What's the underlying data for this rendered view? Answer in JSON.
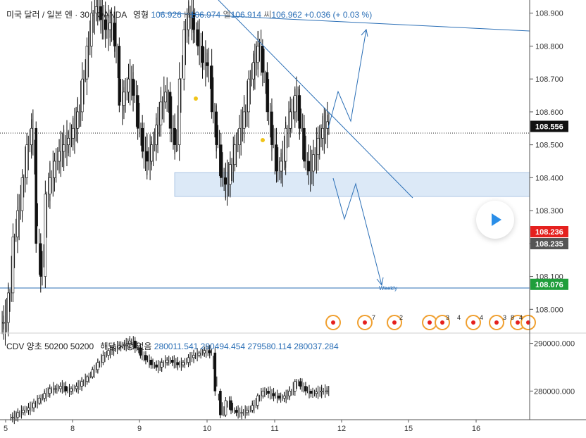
{
  "header": {
    "symbol": "미국 달러 / 일본 엔 · 30 · OANDA",
    "status": "영형",
    "o": "106.926",
    "h_label": "H",
    "h": "106.974",
    "l_label": "엘",
    "l": "106.914",
    "c_label": "씨",
    "c": "106.962",
    "change": "+0.036 (+ 0.03 %)"
  },
  "indicator": {
    "title": "CDV 양초 50200 50200",
    "note": "해당 사항 없음",
    "values": [
      "280011.541",
      "280494.454",
      "279580.114",
      "280037.284"
    ]
  },
  "colors": {
    "line": "#2b6fb6",
    "zone": "#dce9f7",
    "red_tag": "#e5201e",
    "grey_tag": "#555555",
    "green_tag": "#1f9e3b",
    "black_tag": "#111111",
    "axis_text": "#333333"
  },
  "chart_data": [
    {
      "type": "candlestick",
      "title": "",
      "y_axis": {
        "ticks": [
          "108.900",
          "108.800",
          "108.700",
          "108.600",
          "108.500",
          "108.400",
          "108.300",
          "108.200",
          "108.100",
          "108.000"
        ],
        "ylim": [
          107.93,
          108.94
        ]
      },
      "x_axis": {
        "ticks": [
          "5",
          "8",
          "9",
          "10",
          "11",
          "12",
          "15",
          "16"
        ]
      },
      "price_tags": [
        {
          "label": "108.556",
          "value": 108.556,
          "color": "black"
        },
        {
          "label": "108.236",
          "value": 108.236,
          "color": "red"
        },
        {
          "label": "108.235",
          "value": 108.235,
          "color": "grey"
        },
        {
          "label": "108.076",
          "value": 108.076,
          "color": "green"
        }
      ],
      "horizontal_lines": [
        {
          "value": 108.556,
          "style": "dotted"
        },
        {
          "value": 108.066,
          "style": "solid",
          "label": "Weekly"
        }
      ],
      "zone": {
        "from": 108.36,
        "to": 108.43
      },
      "close_series": [
        107.96,
        108.05,
        108.22,
        108.3,
        108.4,
        108.5,
        108.55,
        108.2,
        108.1,
        108.35,
        108.4,
        108.45,
        108.48,
        108.5,
        108.52,
        108.55,
        108.6,
        108.7,
        108.8,
        108.9,
        108.92,
        108.88,
        108.85,
        108.87,
        108.8,
        108.62,
        108.66,
        108.7,
        108.65,
        108.55,
        108.48,
        108.45,
        108.5,
        108.56,
        108.63,
        108.66,
        108.55,
        108.5,
        108.7,
        108.85,
        108.9,
        108.85,
        108.8,
        108.75,
        108.74,
        108.6,
        108.5,
        108.4,
        108.38,
        108.44,
        108.5,
        108.55,
        108.6,
        108.7,
        108.75,
        108.8,
        108.72,
        108.6,
        108.5,
        108.42,
        108.45,
        108.55,
        108.6,
        108.65,
        108.55,
        108.45,
        108.42,
        108.47,
        108.52,
        108.55,
        108.57
      ],
      "event_markers": [
        "7",
        "2",
        "3",
        "4",
        "4",
        "3",
        "8",
        "4"
      ]
    },
    {
      "type": "candlestick",
      "title": "CDV 양초 50200 50200",
      "y_axis": {
        "ticks": [
          "290000.000",
          "280000.000"
        ],
        "ylim": [
          274000,
          292000
        ]
      },
      "close_series": [
        274500,
        275500,
        276000,
        276500,
        277500,
        278500,
        279500,
        280500,
        280500,
        281000,
        280000,
        280500,
        281000,
        282000,
        283000,
        284500,
        286000,
        287500,
        288500,
        289000,
        289500,
        289800,
        290500,
        289000,
        287500,
        286500,
        285500,
        285000,
        286000,
        286500,
        286000,
        285500,
        286000,
        287000,
        287500,
        288000,
        288500,
        288000,
        280000,
        275000,
        278000,
        276000,
        275500,
        275500,
        276000,
        277000,
        279000,
        280000,
        279500,
        279000,
        278500,
        279000,
        280000,
        282000,
        281000,
        280000,
        279500,
        279800,
        280000,
        280037
      ]
    }
  ]
}
